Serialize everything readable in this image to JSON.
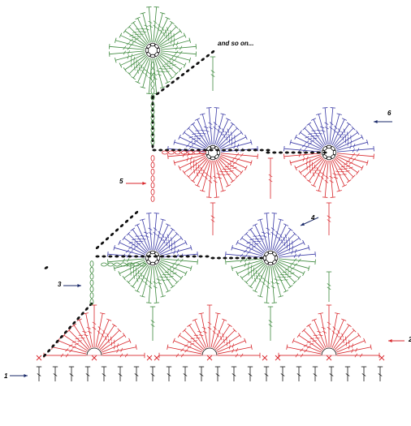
{
  "labels": {
    "and_so_on": "and so on...",
    "row_1": "1",
    "row_2": "2",
    "row_3": "3",
    "row_4": "4",
    "row_5": "5",
    "row_6": "6"
  },
  "colors": {
    "red": "#d8262b",
    "green": "#3e8a3e",
    "blue": "#3a3aa6",
    "black": "#111111",
    "arrow_red": "#d8262b",
    "arrow_dark": "#1a2a6a"
  },
  "motifs": [
    {
      "kind": "diamond",
      "color_top": "green",
      "color_bottom": "green",
      "row": 7
    },
    {
      "kind": "diamond",
      "color_top": "blue",
      "color_bottom": "red",
      "row": 5
    },
    {
      "kind": "diamond",
      "color_top": "blue",
      "color_bottom": "red",
      "row": 5
    },
    {
      "kind": "diamond",
      "color_top": "blue",
      "color_bottom": "green",
      "row": 3
    },
    {
      "kind": "diamond",
      "color_top": "blue",
      "color_bottom": "green",
      "row": 3
    },
    {
      "kind": "fan",
      "color": "red",
      "row": 2
    },
    {
      "kind": "fan",
      "color": "red",
      "row": 2
    },
    {
      "kind": "fan",
      "color": "red",
      "row": 2
    }
  ],
  "foundation": {
    "stitch": "treble",
    "count": 22
  }
}
